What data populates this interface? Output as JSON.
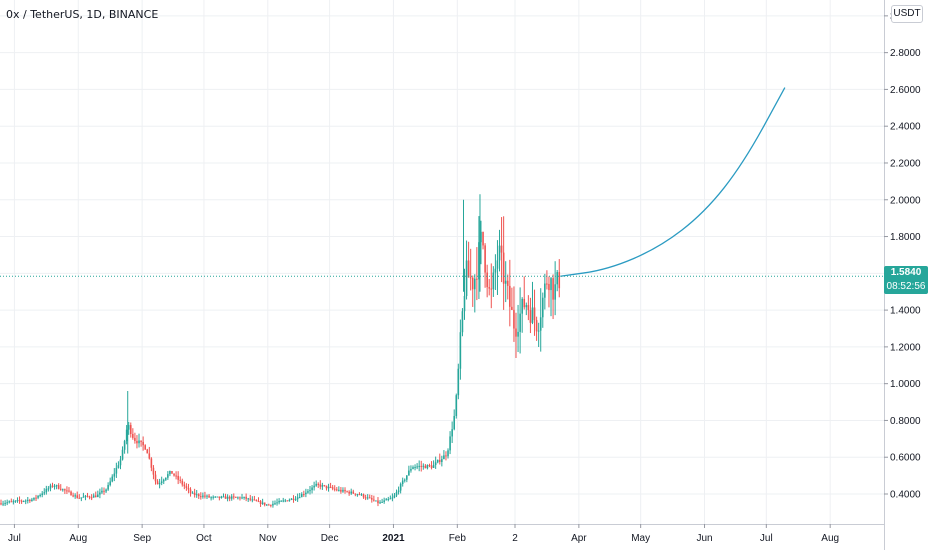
{
  "header": {
    "symbol_title": "0x / TetherUS, 1D, BINANCE",
    "currency_badge": "USDT"
  },
  "last_price": {
    "value": "1.5840",
    "countdown": "08:52:56",
    "color": "#26a69a"
  },
  "colors": {
    "up": "#26a69a",
    "down": "#ef5350",
    "projection": "#2b9bc2",
    "grid": "#eef0f3"
  },
  "chart_data": {
    "type": "candlestick",
    "x_tick_labels": [
      "Jul",
      "Aug",
      "Sep",
      "Oct",
      "Nov",
      "Dec",
      "2021",
      "Feb",
      "2",
      "Apr",
      "May",
      "Jun",
      "Jul",
      "Aug"
    ],
    "y_tick_labels": [
      "3",
      "2.8000",
      "2.6000",
      "2.4000",
      "2.2000",
      "2.0000",
      "1.8000",
      "1.6000",
      "1.4000",
      "1.2000",
      "1.0000",
      "0.8000",
      "0.6000",
      "0.4000"
    ],
    "y_ticks": [
      3.0,
      2.8,
      2.6,
      2.4,
      2.2,
      2.0,
      1.8,
      1.6,
      1.4,
      1.2,
      1.0,
      0.8,
      0.6,
      0.4
    ],
    "ylim": [
      0.24,
      3.02
    ],
    "last_price": 1.584,
    "price_path": [
      {
        "date": "2020-06-24",
        "price": 0.35
      },
      {
        "date": "2020-07-10",
        "price": 0.37
      },
      {
        "date": "2020-07-20",
        "price": 0.45
      },
      {
        "date": "2020-08-01",
        "price": 0.38
      },
      {
        "date": "2020-08-10",
        "price": 0.39
      },
      {
        "date": "2020-08-15",
        "price": 0.43
      },
      {
        "date": "2020-08-22",
        "price": 0.6
      },
      {
        "date": "2020-08-25",
        "price": 0.78
      },
      {
        "date": "2020-08-28",
        "price": 0.7
      },
      {
        "date": "2020-09-03",
        "price": 0.65
      },
      {
        "date": "2020-09-08",
        "price": 0.45
      },
      {
        "date": "2020-09-15",
        "price": 0.52
      },
      {
        "date": "2020-09-25",
        "price": 0.4
      },
      {
        "date": "2020-10-05",
        "price": 0.38
      },
      {
        "date": "2020-10-20",
        "price": 0.38
      },
      {
        "date": "2020-11-01",
        "price": 0.34
      },
      {
        "date": "2020-11-15",
        "price": 0.38
      },
      {
        "date": "2020-11-25",
        "price": 0.45
      },
      {
        "date": "2020-12-05",
        "price": 0.42
      },
      {
        "date": "2020-12-15",
        "price": 0.4
      },
      {
        "date": "2020-12-25",
        "price": 0.35
      },
      {
        "date": "2021-01-01",
        "price": 0.38
      },
      {
        "date": "2021-01-10",
        "price": 0.55
      },
      {
        "date": "2021-01-20",
        "price": 0.55
      },
      {
        "date": "2021-01-27",
        "price": 0.62
      },
      {
        "date": "2021-01-31",
        "price": 0.85
      },
      {
        "date": "2021-02-05",
        "price": 1.6
      },
      {
        "date": "2021-02-09",
        "price": 1.55
      },
      {
        "date": "2021-02-13",
        "price": 1.8
      },
      {
        "date": "2021-02-17",
        "price": 1.45
      },
      {
        "date": "2021-02-21",
        "price": 1.72
      },
      {
        "date": "2021-02-25",
        "price": 1.5
      },
      {
        "date": "2021-03-01",
        "price": 1.3
      },
      {
        "date": "2021-03-06",
        "price": 1.45
      },
      {
        "date": "2021-03-12",
        "price": 1.32
      },
      {
        "date": "2021-03-17",
        "price": 1.6
      },
      {
        "date": "2021-03-20",
        "price": 1.5
      },
      {
        "date": "2021-03-23",
        "price": 1.584
      }
    ],
    "projection": [
      {
        "date": "2021-03-23",
        "price": 1.584
      },
      {
        "date": "2021-04-15",
        "price": 1.62
      },
      {
        "date": "2021-05-10",
        "price": 1.74
      },
      {
        "date": "2021-06-01",
        "price": 1.93
      },
      {
        "date": "2021-06-20",
        "price": 2.2
      },
      {
        "date": "2021-07-10",
        "price": 2.61
      }
    ]
  }
}
